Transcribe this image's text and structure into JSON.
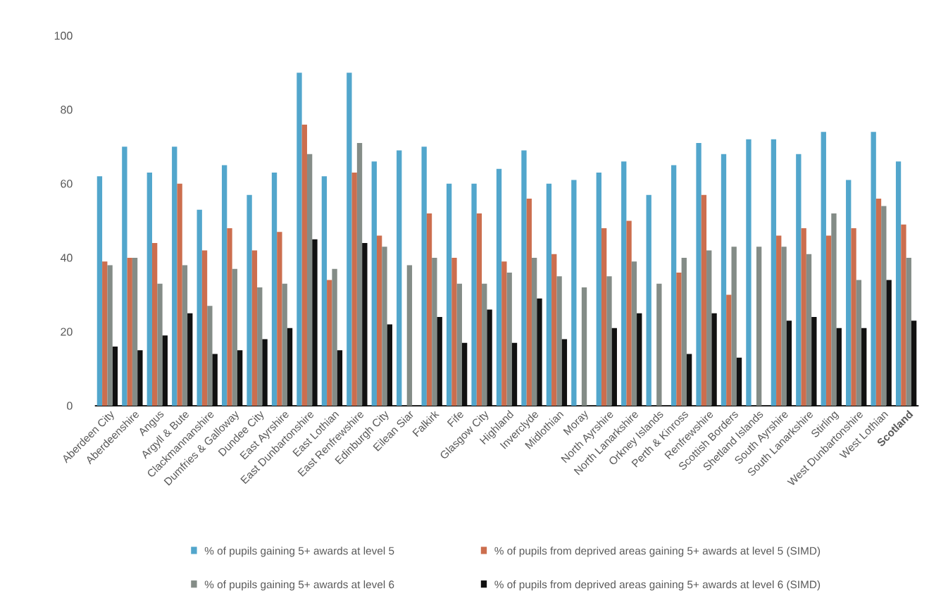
{
  "chart_data": {
    "type": "bar",
    "categories": [
      "Aberdeen City",
      "Aberdeenshire",
      "Angus",
      "Argyll & Bute",
      "Clackmannanshire",
      "Dumfries & Galloway",
      "Dundee City",
      "East Ayrshire",
      "East Dunbartonshire",
      "East Lothian",
      "East Renfrewshire",
      "Edinburgh City",
      "Eilean Siar",
      "Falkirk",
      "Fife",
      "Glasgow City",
      "Highland",
      "Inverclyde",
      "Midlothian",
      "Moray",
      "North Ayrshire",
      "North Lanarkshire",
      "Orkney Islands",
      "Perth & Kinross",
      "Renfrewshire",
      "Scottish Borders",
      "Shetland Islands",
      "South Ayrshire",
      "South Lanarkshire",
      "Stirling",
      "West Dunbartonshire",
      "West Lothian",
      "**Scotland**"
    ],
    "series": [
      {
        "name": "% of pupils gaining 5+ awards at level 5",
        "color": "#52a6cc",
        "values": [
          62,
          70,
          63,
          70,
          53,
          65,
          57,
          63,
          90,
          62,
          90,
          66,
          69,
          70,
          60,
          60,
          64,
          69,
          60,
          61,
          63,
          66,
          57,
          65,
          71,
          68,
          72,
          72,
          68,
          74,
          61,
          74,
          66
        ]
      },
      {
        "name": "% of pupils from deprived areas gaining 5+ awards at level 5 (SIMD)",
        "color": "#cc6e4e",
        "values": [
          39,
          40,
          44,
          60,
          42,
          48,
          42,
          47,
          76,
          34,
          63,
          46,
          null,
          52,
          40,
          52,
          39,
          56,
          41,
          null,
          48,
          50,
          null,
          36,
          57,
          30,
          null,
          46,
          48,
          46,
          48,
          56,
          49
        ]
      },
      {
        "name": "% of pupils gaining 5+ awards at level 6",
        "color": "#848c87",
        "values": [
          38,
          40,
          33,
          38,
          27,
          37,
          32,
          33,
          68,
          37,
          71,
          43,
          38,
          40,
          33,
          33,
          36,
          40,
          35,
          32,
          35,
          39,
          33,
          40,
          42,
          43,
          43,
          43,
          41,
          52,
          34,
          54,
          40
        ]
      },
      {
        "name": "% of pupils from deprived areas gaining 5+ awards at level 6 (SIMD)",
        "color": "#111111",
        "values": [
          16,
          15,
          19,
          25,
          14,
          15,
          18,
          21,
          45,
          15,
          44,
          22,
          null,
          24,
          17,
          26,
          17,
          29,
          18,
          null,
          21,
          25,
          null,
          14,
          25,
          13,
          null,
          23,
          24,
          21,
          21,
          34,
          23
        ]
      }
    ],
    "ylim": [
      0,
      100
    ],
    "yticks": [
      0,
      20,
      40,
      60,
      80,
      100
    ],
    "legend": "bottom"
  }
}
